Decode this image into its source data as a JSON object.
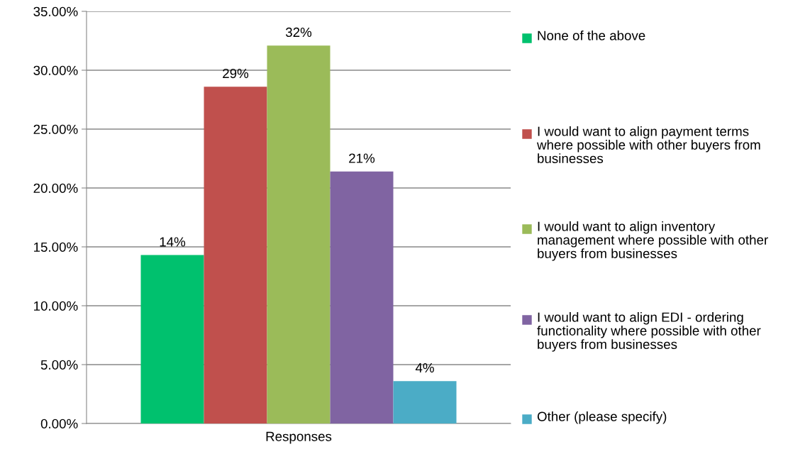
{
  "chart_data": {
    "type": "bar",
    "categories": [
      "Responses"
    ],
    "series": [
      {
        "name": "None of the above",
        "color": "#00c16e",
        "values": [
          14.3
        ],
        "value_labels": [
          "14%"
        ]
      },
      {
        "name": "I would want to align payment terms where possible with other buyers from businesses",
        "color": "#c0504d",
        "values": [
          28.6
        ],
        "value_labels": [
          "29%"
        ]
      },
      {
        "name": "I would want to align inventory management where possible with other buyers from businesses",
        "color": "#9bbb59",
        "values": [
          32.1
        ],
        "value_labels": [
          "32%"
        ]
      },
      {
        "name": "I would want to align EDI - ordering functionality where possible with other buyers from businesses",
        "color": "#8064a2",
        "values": [
          21.4
        ],
        "value_labels": [
          "21%"
        ]
      },
      {
        "name": "Other (please specify)",
        "color": "#4bacc6",
        "values": [
          3.6
        ],
        "value_labels": [
          "4%"
        ]
      }
    ],
    "ylim": [
      0,
      35
    ],
    "yticks": [
      {
        "value": 0,
        "label": "0.00%"
      },
      {
        "value": 5,
        "label": "5.00%"
      },
      {
        "value": 10,
        "label": "10.00%"
      },
      {
        "value": 15,
        "label": "15.00%"
      },
      {
        "value": 20,
        "label": "20.00%"
      },
      {
        "value": 25,
        "label": "25.00%"
      },
      {
        "value": 30,
        "label": "30.00%"
      },
      {
        "value": 35,
        "label": "35.00%"
      }
    ],
    "grid": "y",
    "legend": "right"
  }
}
